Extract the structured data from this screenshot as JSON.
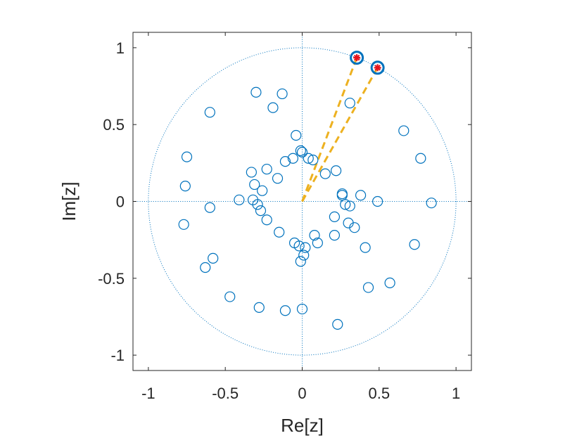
{
  "chart_data": {
    "type": "scatter",
    "title": "",
    "xlabel": "Re[z]",
    "ylabel": "Im[z]",
    "xlim": [
      -1.1,
      1.1
    ],
    "ylim": [
      -1.1,
      1.1
    ],
    "x_ticks": [
      -1,
      -0.5,
      0,
      0.5,
      1
    ],
    "y_ticks": [
      -1,
      -0.5,
      0,
      0.5,
      1
    ],
    "x_tick_labels": [
      "-1",
      "-0.5",
      "0",
      "0.5",
      "1"
    ],
    "y_tick_labels": [
      "-1",
      "-0.5",
      "0",
      "0.5",
      "1"
    ],
    "grid": false,
    "unit_circle": true,
    "zero_lines": true,
    "colors": {
      "markers": "#0072BD",
      "dotted": "#0072BD",
      "dashed": "#EDB120",
      "highlight": "#E6141E",
      "axis": "#262626"
    },
    "series": [
      {
        "marker": "circle",
        "points": [
          [
            -0.3,
            0.71
          ],
          [
            -0.13,
            0.7
          ],
          [
            -0.6,
            0.58
          ],
          [
            -0.19,
            0.61
          ],
          [
            0.31,
            0.64
          ],
          [
            -0.04,
            0.43
          ],
          [
            -0.01,
            0.33
          ],
          [
            0.0,
            0.32
          ],
          [
            -0.75,
            0.29
          ],
          [
            -0.11,
            0.26
          ],
          [
            -0.06,
            0.28
          ],
          [
            0.04,
            0.28
          ],
          [
            0.07,
            0.27
          ],
          [
            -0.23,
            0.21
          ],
          [
            -0.33,
            0.19
          ],
          [
            0.15,
            0.18
          ],
          [
            0.22,
            0.2
          ],
          [
            -0.16,
            0.15
          ],
          [
            -0.31,
            0.11
          ],
          [
            -0.26,
            0.07
          ],
          [
            -0.76,
            0.1
          ],
          [
            0.26,
            0.05
          ],
          [
            0.26,
            0.04
          ],
          [
            0.38,
            0.04
          ],
          [
            -0.41,
            0.01
          ],
          [
            -0.32,
            0.01
          ],
          [
            -0.29,
            -0.02
          ],
          [
            -0.27,
            -0.06
          ],
          [
            0.28,
            -0.02
          ],
          [
            0.31,
            -0.03
          ],
          [
            0.49,
            0.0
          ],
          [
            0.84,
            -0.01
          ],
          [
            -0.6,
            -0.04
          ],
          [
            -0.77,
            -0.15
          ],
          [
            -0.23,
            -0.12
          ],
          [
            0.21,
            -0.1
          ],
          [
            0.3,
            -0.14
          ],
          [
            0.34,
            -0.17
          ],
          [
            -0.15,
            -0.2
          ],
          [
            0.08,
            -0.22
          ],
          [
            0.21,
            -0.22
          ],
          [
            0.1,
            -0.27
          ],
          [
            -0.05,
            -0.27
          ],
          [
            -0.02,
            -0.29
          ],
          [
            0.02,
            -0.3
          ],
          [
            0.41,
            -0.3
          ],
          [
            0.73,
            -0.28
          ],
          [
            0.01,
            -0.35
          ],
          [
            -0.58,
            -0.37
          ],
          [
            -0.63,
            -0.43
          ],
          [
            -0.01,
            -0.39
          ],
          [
            0.43,
            -0.56
          ],
          [
            0.57,
            -0.53
          ],
          [
            -0.47,
            -0.62
          ],
          [
            -0.28,
            -0.69
          ],
          [
            -0.11,
            -0.71
          ],
          [
            0.0,
            -0.7
          ],
          [
            0.23,
            -0.8
          ],
          [
            0.66,
            0.46
          ],
          [
            0.77,
            0.28
          ]
        ]
      },
      {
        "marker": "circle-highlight",
        "points": [
          [
            0.355,
            0.935
          ],
          [
            0.49,
            0.87
          ]
        ]
      }
    ],
    "dashed_segments": [
      {
        "from": [
          0.0,
          0.0
        ],
        "to": [
          0.355,
          0.935
        ]
      },
      {
        "from": [
          0.0,
          0.0
        ],
        "to": [
          0.49,
          0.87
        ]
      }
    ]
  }
}
